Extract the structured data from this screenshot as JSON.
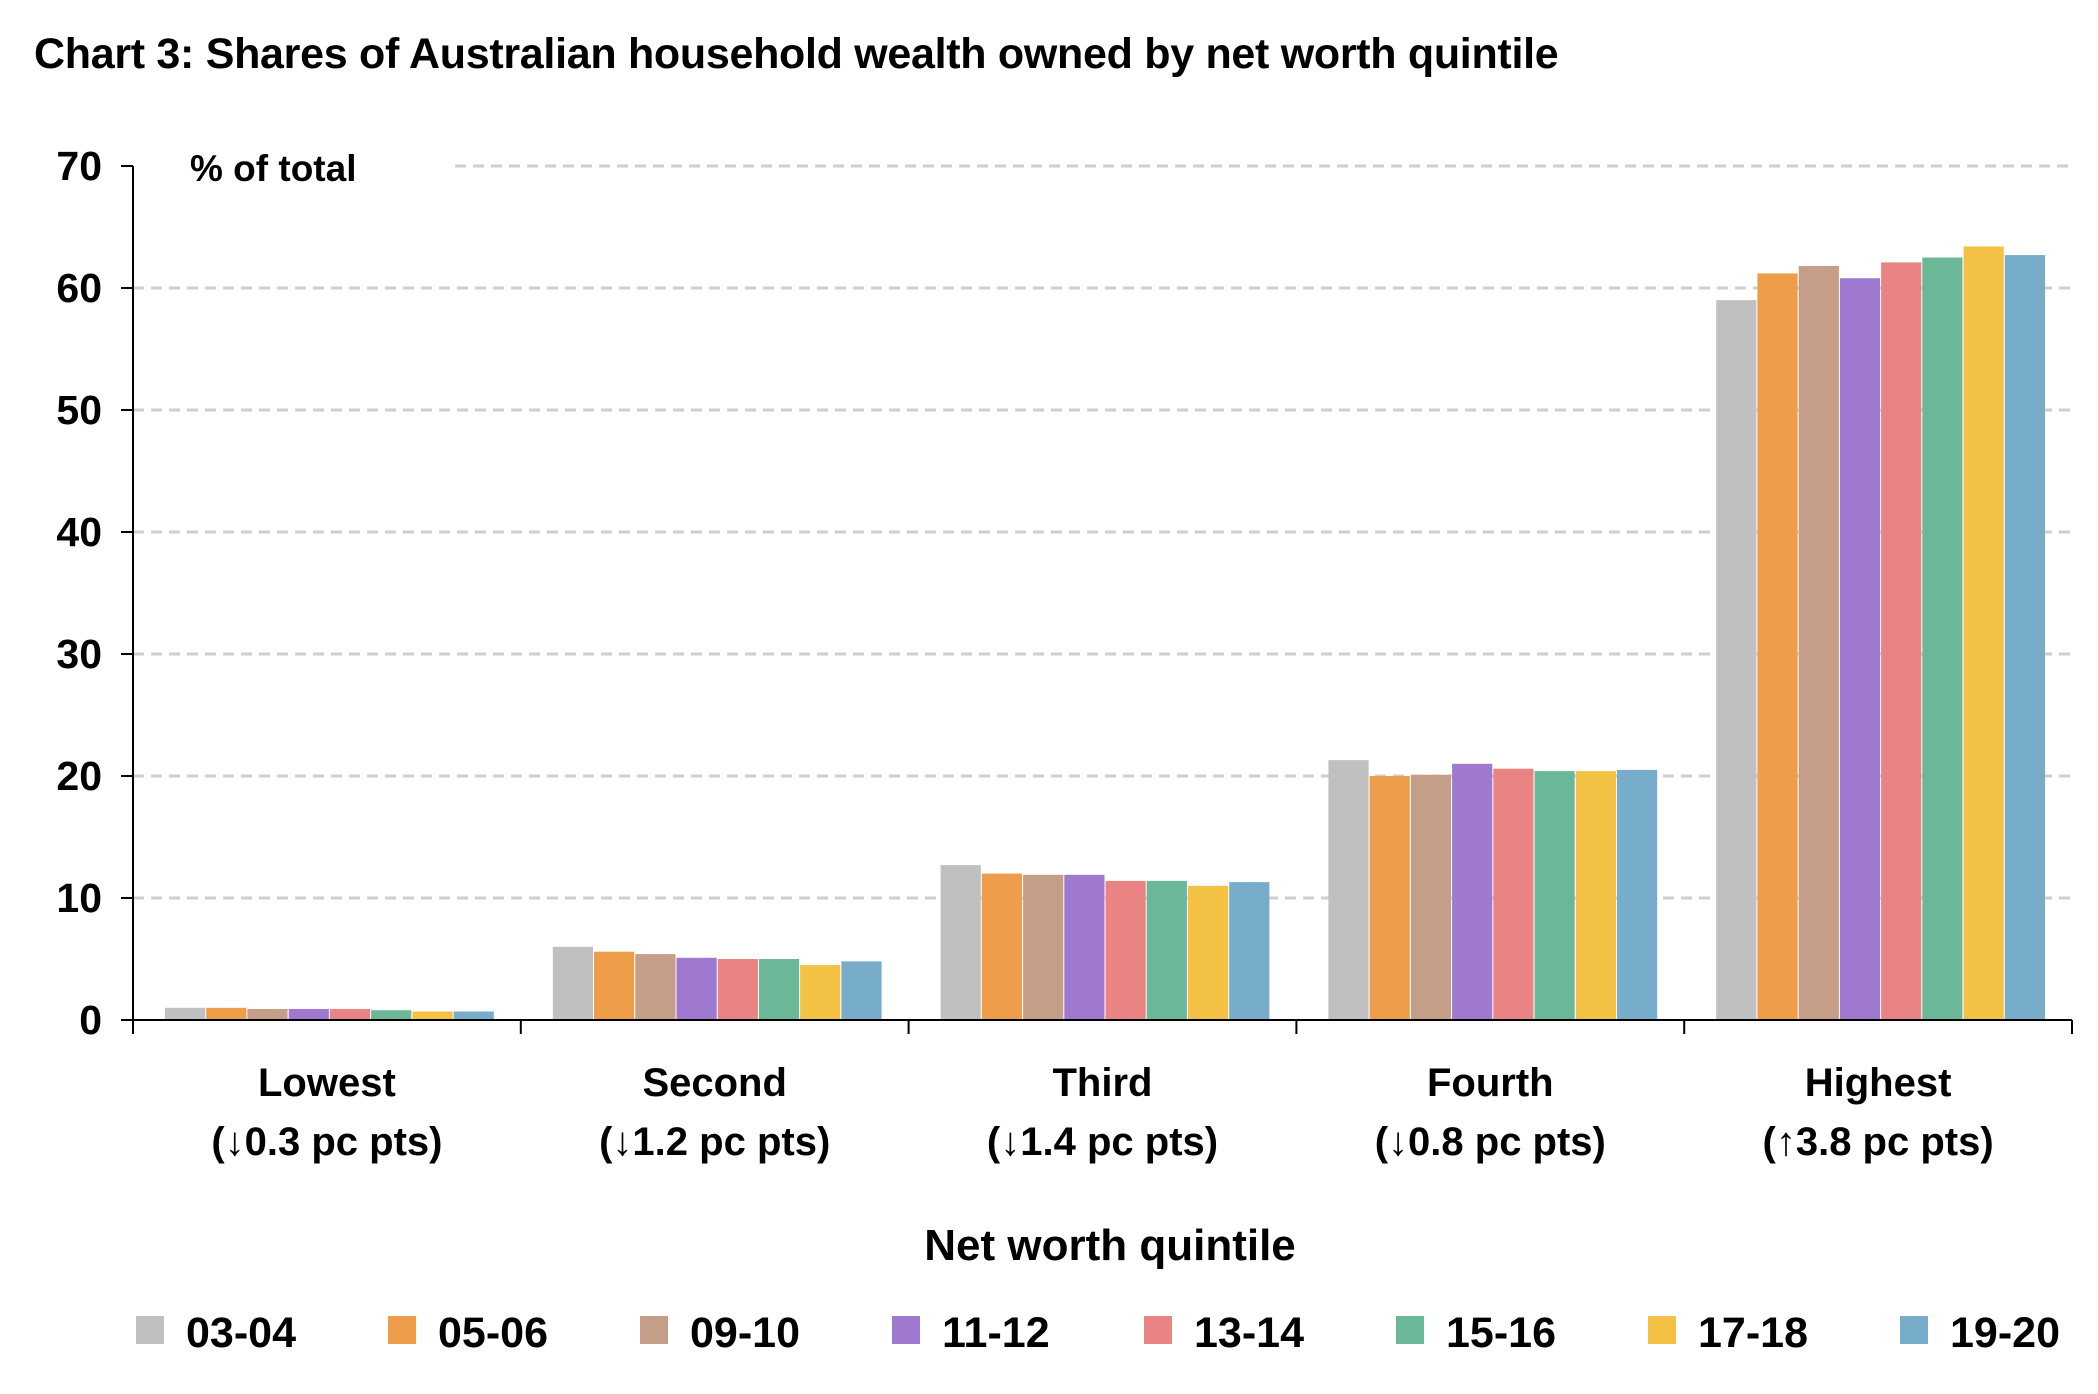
{
  "title": "Chart 3: Shares of Australian household wealth owned by net worth quintile",
  "chart_data": {
    "type": "bar",
    "title": "Chart 3: Shares of Australian household wealth owned by net worth quintile",
    "xlabel": "Net worth quintile",
    "ylabel": "",
    "unit_label": "% of total",
    "ylim": [
      0,
      70
    ],
    "yticks": [
      0,
      10,
      20,
      30,
      40,
      50,
      60,
      70
    ],
    "grid": "horizontal dashed",
    "legend_position": "bottom",
    "categories": [
      "Lowest",
      "Second",
      "Third",
      "Fourth",
      "Highest"
    ],
    "category_sublabels": [
      "(↓0.3 pc pts)",
      "(↓1.2 pc pts)",
      "(↓1.4 pc pts)",
      "(↓0.8 pc pts)",
      "(↑3.8 pc pts)"
    ],
    "series": [
      {
        "name": "03-04",
        "color": "#c0c0c0",
        "values": [
          1.0,
          6.0,
          12.7,
          21.3,
          59.0
        ]
      },
      {
        "name": "05-06",
        "color": "#ee9d4b",
        "values": [
          1.0,
          5.6,
          12.0,
          20.0,
          61.2
        ]
      },
      {
        "name": "09-10",
        "color": "#c49e86",
        "values": [
          0.9,
          5.4,
          11.9,
          20.1,
          61.8
        ]
      },
      {
        "name": "11-12",
        "color": "#9f79cf",
        "values": [
          0.9,
          5.1,
          11.9,
          21.0,
          60.8
        ]
      },
      {
        "name": "13-14",
        "color": "#ea8484",
        "values": [
          0.9,
          5.0,
          11.4,
          20.6,
          62.1
        ]
      },
      {
        "name": "15-16",
        "color": "#6bb899",
        "values": [
          0.8,
          5.0,
          11.4,
          20.4,
          62.5
        ]
      },
      {
        "name": "17-18",
        "color": "#f3c244",
        "values": [
          0.7,
          4.5,
          11.0,
          20.4,
          63.4
        ]
      },
      {
        "name": "19-20",
        "color": "#77adcb",
        "values": [
          0.7,
          4.8,
          11.3,
          20.5,
          62.7
        ]
      }
    ]
  }
}
